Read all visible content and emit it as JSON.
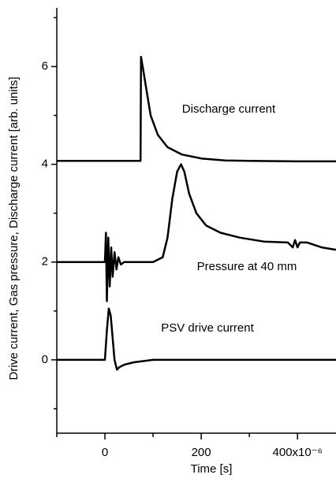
{
  "chart_data": {
    "type": "line",
    "xlabel": "Time  [s]",
    "ylabel": "Drive current, Gas pressure, Discharge current  [arb. units]",
    "xlim": [
      -100,
      480
    ],
    "ylim": [
      -1.5,
      7.2
    ],
    "xticks": [
      0,
      200,
      {
        "value": 400,
        "label": "400x10⁻⁶"
      }
    ],
    "xminor": [
      -100,
      100,
      300
    ],
    "yticks": [
      0,
      2,
      4,
      6
    ],
    "yminor": [
      -1,
      1,
      3,
      5,
      7
    ],
    "series": [
      {
        "name": "Discharge current",
        "color": "#000000",
        "x": [
          -100,
          0,
          74,
          75,
          80,
          85,
          95,
          110,
          130,
          160,
          200,
          250,
          300,
          400,
          480
        ],
        "values": [
          4.07,
          4.07,
          4.07,
          6.2,
          5.9,
          5.6,
          5.0,
          4.6,
          4.35,
          4.2,
          4.12,
          4.08,
          4.07,
          4.06,
          4.06
        ]
      },
      {
        "name": "Pressure at 40 mm",
        "color": "#000000",
        "x": [
          -100,
          0,
          2,
          4,
          7,
          10,
          13,
          16,
          20,
          24,
          28,
          33,
          40,
          100,
          120,
          130,
          140,
          150,
          158,
          165,
          175,
          190,
          210,
          240,
          280,
          330,
          380,
          390,
          395,
          400,
          405,
          420,
          450,
          480
        ],
        "values": [
          2.0,
          2.0,
          2.6,
          1.2,
          2.5,
          1.5,
          2.3,
          1.7,
          2.2,
          1.85,
          2.1,
          1.95,
          2.0,
          2.0,
          2.1,
          2.5,
          3.3,
          3.85,
          4.0,
          3.85,
          3.4,
          3.0,
          2.75,
          2.6,
          2.5,
          2.42,
          2.4,
          2.3,
          2.45,
          2.3,
          2.4,
          2.4,
          2.3,
          2.25
        ]
      },
      {
        "name": "PSV drive current",
        "color": "#000000",
        "x": [
          -100,
          0,
          4,
          8,
          12,
          16,
          20,
          25,
          30,
          40,
          60,
          100,
          200,
          480
        ],
        "values": [
          0,
          0,
          0.6,
          1.05,
          0.9,
          0.45,
          0.0,
          -0.2,
          -0.15,
          -0.1,
          -0.05,
          0,
          0,
          0
        ]
      }
    ]
  }
}
